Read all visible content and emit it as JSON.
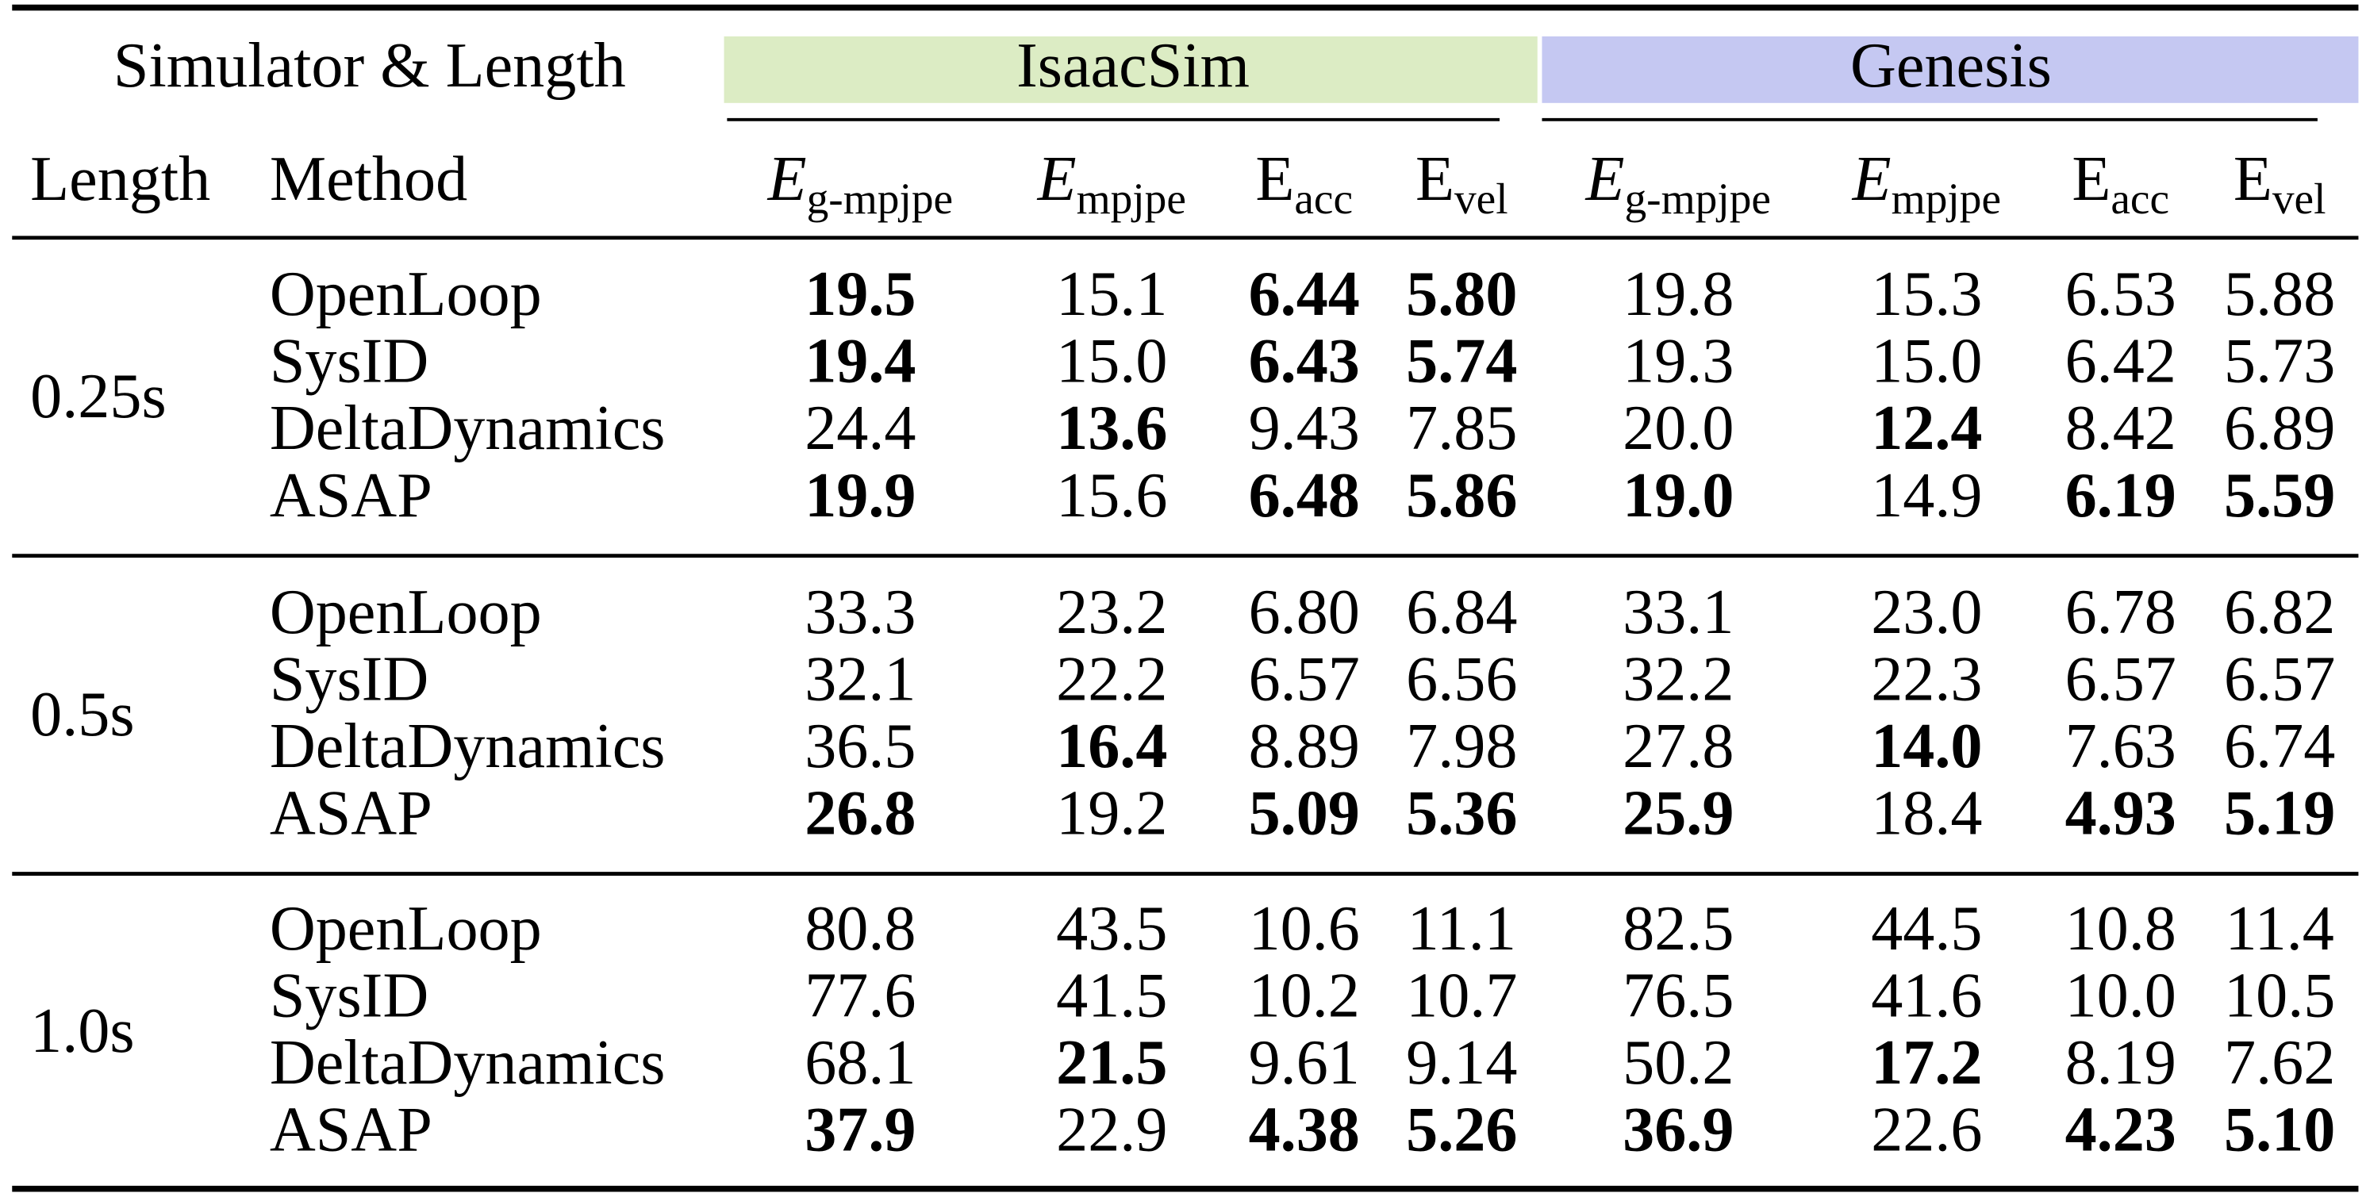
{
  "header": {
    "top_left": "Simulator & Length",
    "groups": [
      {
        "name": "IsaacSim",
        "color": "#dcecc4"
      },
      {
        "name": "Genesis",
        "color": "#c5c8f2"
      }
    ],
    "columns": [
      {
        "label": "Length"
      },
      {
        "label": "Method"
      },
      {
        "main": "E",
        "sub": "g-mpjpe",
        "italic": true
      },
      {
        "main": "E",
        "sub": "mpjpe",
        "italic": true
      },
      {
        "main": "E",
        "sub": "acc",
        "italic": false
      },
      {
        "main": "E",
        "sub": "vel",
        "italic": false
      },
      {
        "main": "E",
        "sub": "g-mpjpe",
        "italic": true
      },
      {
        "main": "E",
        "sub": "mpjpe",
        "italic": true
      },
      {
        "main": "E",
        "sub": "acc",
        "italic": false
      },
      {
        "main": "E",
        "sub": "vel",
        "italic": false
      }
    ]
  },
  "highlight_color": "#c00000",
  "table": {
    "groups": [
      {
        "length": "0.25s",
        "rows": [
          {
            "method": "OpenLoop",
            "highlight": false,
            "values": [
              "19.5",
              "15.1",
              "6.44",
              "5.80",
              "19.8",
              "15.3",
              "6.53",
              "5.88"
            ],
            "best": [
              true,
              false,
              true,
              true,
              false,
              false,
              false,
              false
            ]
          },
          {
            "method": "SysID",
            "highlight": false,
            "values": [
              "19.4",
              "15.0",
              "6.43",
              "5.74",
              "19.3",
              "15.0",
              "6.42",
              "5.73"
            ],
            "best": [
              true,
              false,
              true,
              true,
              false,
              false,
              false,
              false
            ]
          },
          {
            "method": "DeltaDynamics",
            "highlight": false,
            "values": [
              "24.4",
              "13.6",
              "9.43",
              "7.85",
              "20.0",
              "12.4",
              "8.42",
              "6.89"
            ],
            "best": [
              false,
              true,
              false,
              false,
              false,
              true,
              false,
              false
            ]
          },
          {
            "method": "ASAP",
            "highlight": true,
            "values": [
              "19.9",
              "15.6",
              "6.48",
              "5.86",
              "19.0",
              "14.9",
              "6.19",
              "5.59"
            ],
            "best": [
              true,
              false,
              true,
              true,
              true,
              false,
              true,
              true
            ]
          }
        ]
      },
      {
        "length": "0.5s",
        "rows": [
          {
            "method": "OpenLoop",
            "highlight": false,
            "values": [
              "33.3",
              "23.2",
              "6.80",
              "6.84",
              "33.1",
              "23.0",
              "6.78",
              "6.82"
            ],
            "best": [
              false,
              false,
              false,
              false,
              false,
              false,
              false,
              false
            ]
          },
          {
            "method": "SysID",
            "highlight": false,
            "values": [
              "32.1",
              "22.2",
              "6.57",
              "6.56",
              "32.2",
              "22.3",
              "6.57",
              "6.57"
            ],
            "best": [
              false,
              false,
              false,
              false,
              false,
              false,
              false,
              false
            ]
          },
          {
            "method": "DeltaDynamics",
            "highlight": false,
            "values": [
              "36.5",
              "16.4",
              "8.89",
              "7.98",
              "27.8",
              "14.0",
              "7.63",
              "6.74"
            ],
            "best": [
              false,
              true,
              false,
              false,
              false,
              true,
              false,
              false
            ]
          },
          {
            "method": "ASAP",
            "highlight": true,
            "values": [
              "26.8",
              "19.2",
              "5.09",
              "5.36",
              "25.9",
              "18.4",
              "4.93",
              "5.19"
            ],
            "best": [
              true,
              false,
              true,
              true,
              true,
              false,
              true,
              true
            ]
          }
        ]
      },
      {
        "length": "1.0s",
        "rows": [
          {
            "method": "OpenLoop",
            "highlight": false,
            "values": [
              "80.8",
              "43.5",
              "10.6",
              "11.1",
              "82.5",
              "44.5",
              "10.8",
              "11.4"
            ],
            "best": [
              false,
              false,
              false,
              false,
              false,
              false,
              false,
              false
            ]
          },
          {
            "method": "SysID",
            "highlight": false,
            "values": [
              "77.6",
              "41.5",
              "10.2",
              "10.7",
              "76.5",
              "41.6",
              "10.0",
              "10.5"
            ],
            "best": [
              false,
              false,
              false,
              false,
              false,
              false,
              false,
              false
            ]
          },
          {
            "method": "DeltaDynamics",
            "highlight": false,
            "values": [
              "68.1",
              "21.5",
              "9.61",
              "9.14",
              "50.2",
              "17.2",
              "8.19",
              "7.62"
            ],
            "best": [
              false,
              true,
              false,
              false,
              false,
              true,
              false,
              false
            ]
          },
          {
            "method": "ASAP",
            "highlight": true,
            "values": [
              "37.9",
              "22.9",
              "4.38",
              "5.26",
              "36.9",
              "22.6",
              "4.23",
              "5.10"
            ],
            "best": [
              true,
              false,
              true,
              true,
              true,
              false,
              true,
              true
            ]
          }
        ]
      }
    ]
  }
}
